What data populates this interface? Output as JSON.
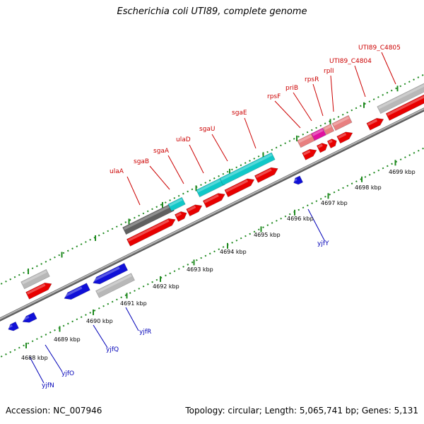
{
  "title": "Escherichia coli UTI89, complete genome",
  "footer": {
    "accession": "Accession: NC_007946",
    "topology": "Topology: circular; Length: 5,065,741 bp; Genes: 5,131"
  },
  "colors": {
    "backbone": "#7f7f7f",
    "tick": "#1f8a1f",
    "label_forward": "#cc0000",
    "label_reverse": "#0000b8",
    "gene_red": "#e80000",
    "gene_blue": "#1010d8",
    "gene_cyan": "#10c8c8",
    "gene_gray": "#b8b8b8",
    "gene_dark": "#606060",
    "gene_pink": "#e88080",
    "gene_magenta": "#e010a0"
  },
  "kbp_labels": [
    "4688 kbp",
    "4689 kbp",
    "4690 kbp",
    "4691 kbp",
    "4692 kbp",
    "4693 kbp",
    "4694 kbp",
    "4695 kbp",
    "4696 kbp",
    "4697 kbp",
    "4698 kbp",
    "4699 kbp"
  ],
  "forward_gene_labels": [
    "ulaA",
    "sgaB",
    "sgaA",
    "ulaD",
    "sgaU",
    "sgaE",
    "rpsF",
    "priB",
    "rpsR",
    "rplI",
    "UTI89_C4804",
    "UTI89_C4805"
  ],
  "reverse_gene_labels": [
    "yjfN",
    "yjfO",
    "yjfQ",
    "yjfR",
    "yjfY"
  ]
}
